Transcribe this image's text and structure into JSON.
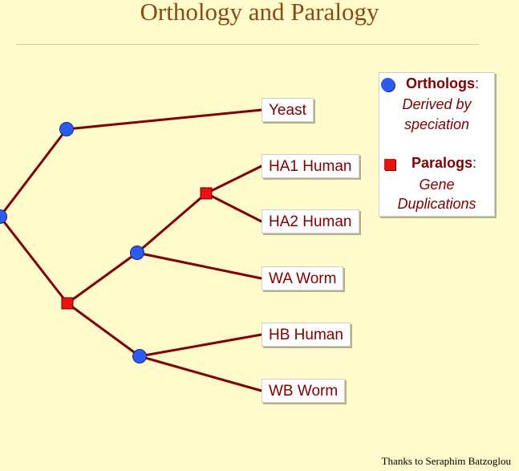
{
  "title": "Orthology and Paralogy",
  "leaves": [
    {
      "name": "leaf-yeast",
      "label": "Yeast"
    },
    {
      "name": "leaf-ha1-human",
      "label": "HA1 Human"
    },
    {
      "name": "leaf-ha2-human",
      "label": "HA2 Human"
    },
    {
      "name": "leaf-wa-worm",
      "label": "WA Worm"
    },
    {
      "name": "leaf-hb-human",
      "label": "HB Human"
    },
    {
      "name": "leaf-wb-worm",
      "label": "WB Worm"
    }
  ],
  "legend": {
    "orthologs": {
      "label": "Orthologs",
      "colon": ":",
      "desc1": "Derived by",
      "desc2": "speciation"
    },
    "paralogs": {
      "label": "Paralogs",
      "colon": ":",
      "desc1": "Gene",
      "desc2": "Duplications"
    }
  },
  "colors": {
    "speciation_node": "#2a5bf5",
    "duplication_node": "#ee1111",
    "branch": "#800000",
    "text": "#800000",
    "title": "#8c4a12",
    "background": "#fffbcc"
  },
  "credit": "Thanks to Seraphim Batzoglou"
}
